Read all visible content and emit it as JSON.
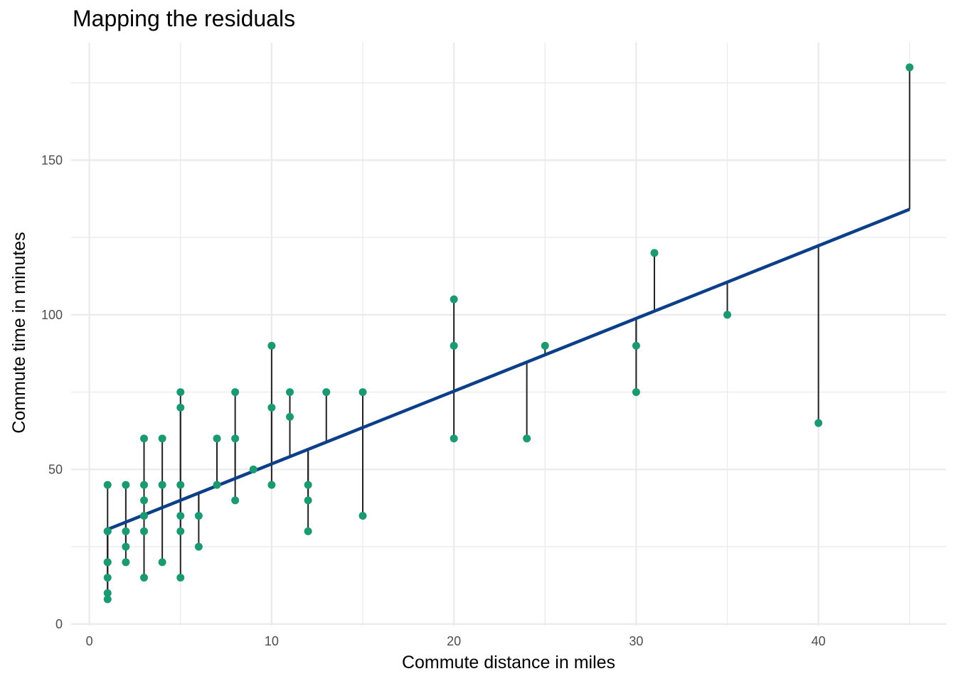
{
  "chart_data": {
    "type": "scatter",
    "title": "Mapping the residuals",
    "xlabel": "Commute distance in miles",
    "ylabel": "Commute time in minutes",
    "xlim": [
      -1,
      47
    ],
    "ylim": [
      -0.5,
      188
    ],
    "x_ticks": [
      0,
      10,
      20,
      30,
      40
    ],
    "y_ticks": [
      0,
      50,
      100,
      150
    ],
    "grid": true,
    "legend": "none",
    "colors": {
      "points": "#1b9a72",
      "fit_line": "#0c3f87",
      "residual_segments": "#222222",
      "grid": "#ebebeb",
      "tick_labels": "#4d4d4d"
    },
    "regression_line": {
      "x": [
        1,
        45
      ],
      "y": [
        30.6,
        134.1
      ]
    },
    "points": [
      {
        "x": 1,
        "y": 45
      },
      {
        "x": 1,
        "y": 30
      },
      {
        "x": 1,
        "y": 30
      },
      {
        "x": 1,
        "y": 20
      },
      {
        "x": 1,
        "y": 20
      },
      {
        "x": 1,
        "y": 15
      },
      {
        "x": 1,
        "y": 10
      },
      {
        "x": 1,
        "y": 8
      },
      {
        "x": 2,
        "y": 45
      },
      {
        "x": 2,
        "y": 30
      },
      {
        "x": 2,
        "y": 25
      },
      {
        "x": 2,
        "y": 20
      },
      {
        "x": 3,
        "y": 60
      },
      {
        "x": 3,
        "y": 45
      },
      {
        "x": 3,
        "y": 40
      },
      {
        "x": 3,
        "y": 35
      },
      {
        "x": 3,
        "y": 30
      },
      {
        "x": 3,
        "y": 15
      },
      {
        "x": 4,
        "y": 60
      },
      {
        "x": 4,
        "y": 45
      },
      {
        "x": 4,
        "y": 20
      },
      {
        "x": 5,
        "y": 75
      },
      {
        "x": 5,
        "y": 70
      },
      {
        "x": 5,
        "y": 45
      },
      {
        "x": 5,
        "y": 35
      },
      {
        "x": 5,
        "y": 30
      },
      {
        "x": 5,
        "y": 15
      },
      {
        "x": 6,
        "y": 35
      },
      {
        "x": 6,
        "y": 25
      },
      {
        "x": 7,
        "y": 60
      },
      {
        "x": 7,
        "y": 45
      },
      {
        "x": 8,
        "y": 75
      },
      {
        "x": 8,
        "y": 60
      },
      {
        "x": 8,
        "y": 40
      },
      {
        "x": 9,
        "y": 50
      },
      {
        "x": 10,
        "y": 90
      },
      {
        "x": 10,
        "y": 70
      },
      {
        "x": 10,
        "y": 45
      },
      {
        "x": 11,
        "y": 75
      },
      {
        "x": 11,
        "y": 67
      },
      {
        "x": 12,
        "y": 45
      },
      {
        "x": 12,
        "y": 40
      },
      {
        "x": 12,
        "y": 30
      },
      {
        "x": 13,
        "y": 75
      },
      {
        "x": 15,
        "y": 75
      },
      {
        "x": 15,
        "y": 35
      },
      {
        "x": 20,
        "y": 105
      },
      {
        "x": 20,
        "y": 90
      },
      {
        "x": 20,
        "y": 60
      },
      {
        "x": 24,
        "y": 60
      },
      {
        "x": 25,
        "y": 90
      },
      {
        "x": 30,
        "y": 90
      },
      {
        "x": 30,
        "y": 75
      },
      {
        "x": 31,
        "y": 120
      },
      {
        "x": 35,
        "y": 100
      },
      {
        "x": 40,
        "y": 65
      },
      {
        "x": 45,
        "y": 180
      }
    ]
  }
}
